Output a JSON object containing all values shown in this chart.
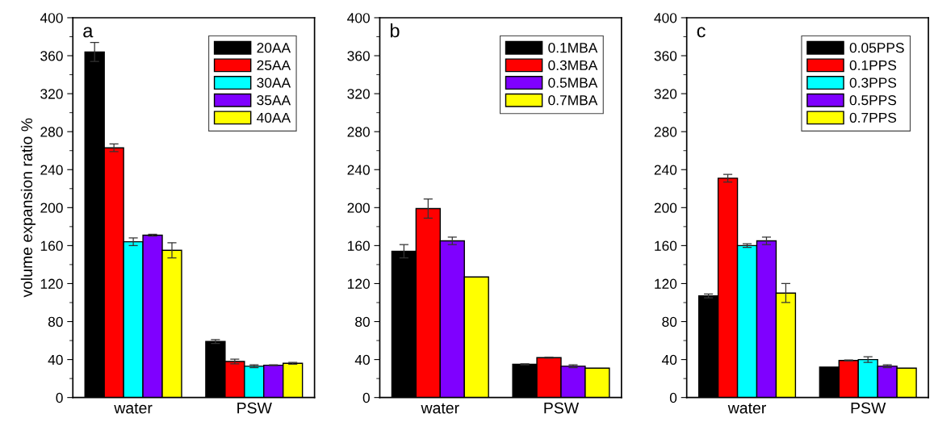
{
  "chart_data": [
    {
      "type": "bar",
      "categories": [
        "water",
        "PSW"
      ],
      "ylabel": "volume expansion ratio %",
      "annotations": [
        "a"
      ],
      "ylim": [
        0,
        400
      ],
      "yticks": [
        0,
        40,
        80,
        120,
        160,
        200,
        240,
        280,
        320,
        360,
        400
      ],
      "legend": "top right",
      "grid": false,
      "series": [
        {
          "name": "20AA",
          "color": "#000000",
          "values": [
            364,
            59
          ],
          "errors": [
            10,
            2
          ]
        },
        {
          "name": "25AA",
          "color": "#ff0000",
          "values": [
            263,
            38
          ],
          "errors": [
            4,
            2.5
          ]
        },
        {
          "name": "30AA",
          "color": "#00ffff",
          "values": [
            164,
            33
          ],
          "errors": [
            4,
            1.5
          ]
        },
        {
          "name": "35AA",
          "color": "#7f00ff",
          "values": [
            171,
            34
          ],
          "errors": [
            1,
            0.5
          ]
        },
        {
          "name": "40AA",
          "color": "#ffff00",
          "values": [
            155,
            36
          ],
          "errors": [
            8,
            1
          ]
        }
      ]
    },
    {
      "type": "bar",
      "categories": [
        "water",
        "PSW"
      ],
      "annotations": [
        "b"
      ],
      "ylim": [
        0,
        400
      ],
      "yticks": [
        0,
        40,
        80,
        120,
        160,
        200,
        240,
        280,
        320,
        360,
        400
      ],
      "legend": "top right",
      "grid": false,
      "series": [
        {
          "name": "0.1MBA",
          "color": "#000000",
          "values": [
            154,
            35
          ],
          "errors": [
            7,
            0.5
          ]
        },
        {
          "name": "0.3MBA",
          "color": "#ff0000",
          "values": [
            199,
            42
          ],
          "errors": [
            10,
            0.5
          ]
        },
        {
          "name": "0.5MBA",
          "color": "#7f00ff",
          "values": [
            165,
            33
          ],
          "errors": [
            4,
            1.5
          ]
        },
        {
          "name": "0.7MBA",
          "color": "#ffff00",
          "values": [
            127,
            31
          ],
          "errors": [
            null,
            null
          ]
        }
      ]
    },
    {
      "type": "bar",
      "categories": [
        "water",
        "PSW"
      ],
      "annotations": [
        "c"
      ],
      "ylim": [
        0,
        400
      ],
      "yticks": [
        0,
        40,
        80,
        120,
        160,
        200,
        240,
        280,
        320,
        360,
        400
      ],
      "legend": "top right",
      "grid": false,
      "series": [
        {
          "name": "0.05PPS",
          "color": "#000000",
          "values": [
            107,
            32
          ],
          "errors": [
            2,
            null
          ]
        },
        {
          "name": "0.1PPS",
          "color": "#ff0000",
          "values": [
            231,
            39
          ],
          "errors": [
            4,
            0.5
          ]
        },
        {
          "name": "0.3PPS",
          "color": "#00ffff",
          "values": [
            160,
            40
          ],
          "errors": [
            2,
            3
          ]
        },
        {
          "name": "0.5PPS",
          "color": "#7f00ff",
          "values": [
            165,
            33
          ],
          "errors": [
            4,
            1.5
          ]
        },
        {
          "name": "0.7PPS",
          "color": "#ffff00",
          "values": [
            110,
            31
          ],
          "errors": [
            10,
            null
          ]
        }
      ]
    }
  ]
}
